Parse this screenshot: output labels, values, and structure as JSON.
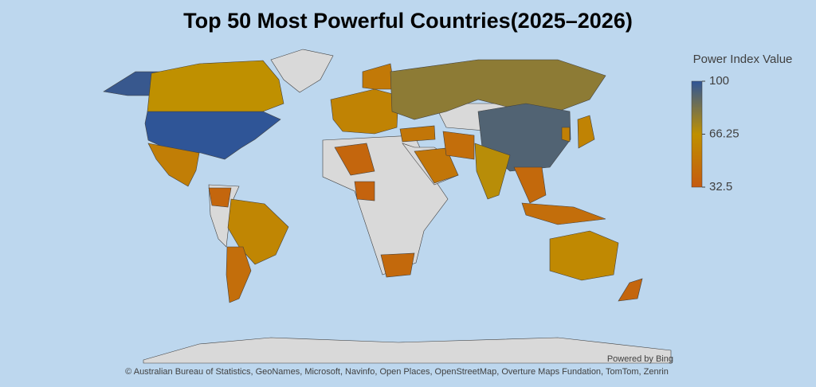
{
  "chart_data": {
    "type": "choropleth",
    "title": "Top 50 Most Powerful Countries(2025–2026)",
    "legend_title": "Power Index Value",
    "colorlim": [
      32.5,
      100
    ],
    "colorticks": [
      100,
      66.25,
      32.5
    ],
    "colors": [
      "#c55a11",
      "#bf9000",
      "#2f5597"
    ],
    "values": [
      100,
      98,
      66,
      55,
      60,
      45,
      40,
      40,
      38,
      42,
      58,
      52,
      78,
      50,
      50,
      45,
      92,
      68,
      58,
      56,
      42,
      45,
      62,
      40
    ],
    "credit": "Powered by Bing",
    "attribution": "© Australian Bureau of Statistics, GeoNames, Microsoft, Navinfo, Open Places, OpenStreetMap, Overture Maps Fundation, TomTom, Zenrin"
  }
}
